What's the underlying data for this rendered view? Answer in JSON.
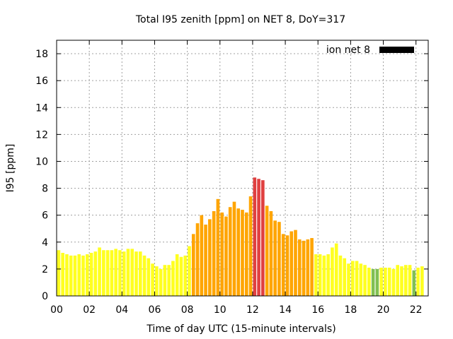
{
  "chart_data": {
    "type": "bar",
    "title": "Total I95 zenith [ppm] on NET 8, DoY=317",
    "xlabel": "Time of day UTC (15-minute intervals)",
    "ylabel": "I95 [ppm]",
    "xlim": [
      0,
      22.75
    ],
    "ylim": [
      0,
      19
    ],
    "x_ticks": [
      0,
      2,
      4,
      6,
      8,
      10,
      12,
      14,
      16,
      18,
      20,
      22
    ],
    "x_tick_labels": [
      "00",
      "02",
      "04",
      "06",
      "08",
      "10",
      "12",
      "14",
      "16",
      "18",
      "20",
      "22"
    ],
    "y_ticks": [
      0,
      2,
      4,
      6,
      8,
      10,
      12,
      14,
      16,
      18
    ],
    "y_tick_labels": [
      "0",
      "2",
      "4",
      "6",
      "8",
      "10",
      "12",
      "14",
      "16",
      "18"
    ],
    "grid": true,
    "legend": {
      "label": "ion net 8",
      "color": "#000000",
      "placement": "top-right"
    },
    "colors": {
      "yellow": "#ffff20",
      "orange": "#ffa500",
      "red": "#e04040",
      "green": "#80c050"
    },
    "series": [
      {
        "name": "ion net 8",
        "x_start": 0,
        "x_step": 0.25,
        "values": [
          3.4,
          3.2,
          3.1,
          3.0,
          3.0,
          3.1,
          3.0,
          3.1,
          3.2,
          3.3,
          3.6,
          3.4,
          3.4,
          3.4,
          3.5,
          3.4,
          3.3,
          3.5,
          3.5,
          3.3,
          3.3,
          3.0,
          2.8,
          2.4,
          2.2,
          2.0,
          2.3,
          2.3,
          2.6,
          3.1,
          2.9,
          3.0,
          3.7,
          4.6,
          5.4,
          6.0,
          5.3,
          5.7,
          6.3,
          7.2,
          6.2,
          5.9,
          6.6,
          7.0,
          6.5,
          6.4,
          6.2,
          7.4,
          8.8,
          8.7,
          8.6,
          6.7,
          6.3,
          5.6,
          5.5,
          4.6,
          4.5,
          4.8,
          4.9,
          4.2,
          4.1,
          4.2,
          4.3,
          3.1,
          3.1,
          3.0,
          3.1,
          3.6,
          3.9,
          3.0,
          2.8,
          2.4,
          2.6,
          2.6,
          2.4,
          2.3,
          2.1,
          2.0,
          2.0,
          2.1,
          2.1,
          2.1,
          2.0,
          2.3,
          2.2,
          2.3,
          2.3,
          1.9,
          2.1,
          2.2
        ],
        "levels": [
          "yellow",
          "yellow",
          "yellow",
          "yellow",
          "yellow",
          "yellow",
          "yellow",
          "yellow",
          "yellow",
          "yellow",
          "yellow",
          "yellow",
          "yellow",
          "yellow",
          "yellow",
          "yellow",
          "yellow",
          "yellow",
          "yellow",
          "yellow",
          "yellow",
          "yellow",
          "yellow",
          "yellow",
          "yellow",
          "yellow",
          "yellow",
          "yellow",
          "yellow",
          "yellow",
          "yellow",
          "yellow",
          "yellow",
          "orange",
          "orange",
          "orange",
          "orange",
          "orange",
          "orange",
          "orange",
          "orange",
          "orange",
          "orange",
          "orange",
          "orange",
          "orange",
          "orange",
          "orange",
          "red",
          "red",
          "red",
          "orange",
          "orange",
          "orange",
          "orange",
          "orange",
          "orange",
          "orange",
          "orange",
          "orange",
          "orange",
          "orange",
          "orange",
          "yellow",
          "yellow",
          "yellow",
          "yellow",
          "yellow",
          "yellow",
          "yellow",
          "yellow",
          "yellow",
          "yellow",
          "yellow",
          "yellow",
          "yellow",
          "yellow",
          "green",
          "green",
          "yellow",
          "yellow",
          "yellow",
          "yellow",
          "yellow",
          "yellow",
          "yellow",
          "yellow",
          "green",
          "yellow",
          "yellow"
        ]
      }
    ]
  }
}
